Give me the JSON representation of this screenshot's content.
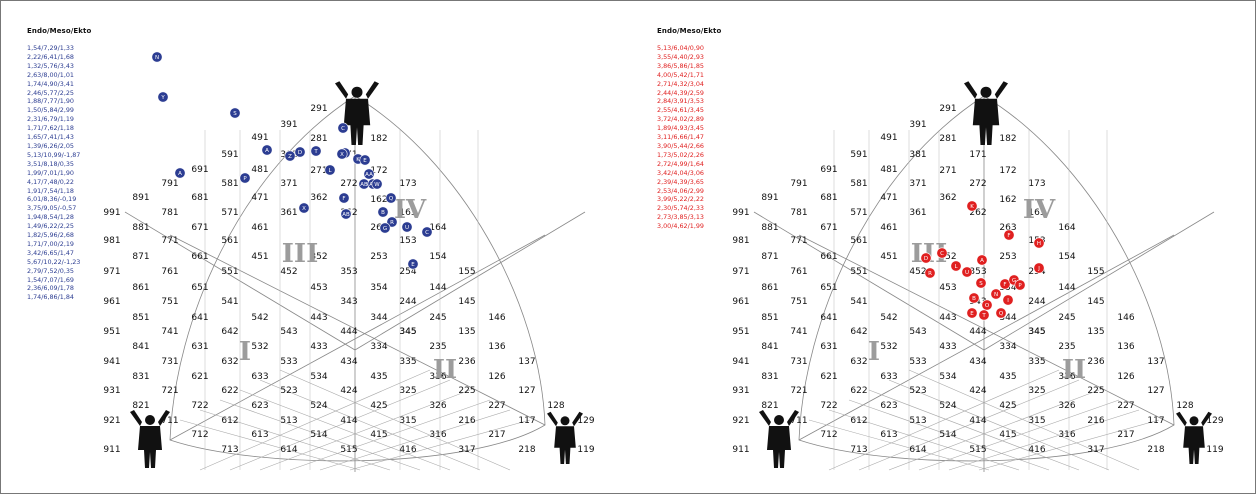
{
  "left_panel": {
    "heading": "Endo/Meso/Ekto",
    "color": "#2c3d92",
    "values": [
      "1,54/7,29/1,33",
      "2,22/6,41/1,68",
      "1,32/5,76/3,43",
      "2,63/8,00/1,01",
      "1,74/4,90/3,41",
      "2,46/5,77/2,25",
      "1,88/7,77/1,90",
      "1,50/5,84/2,99",
      "2,31/6,79/1,19",
      "1,71/7,62/1,18",
      "1,65/7,41/1,43",
      "1,39/6,26/2,05",
      "5,13/10,99/-1,87",
      "3,51/8,18/0,35",
      "1,99/7,01/1,90",
      "4,17/7,48/0,22",
      "1,91/7,54/1,18",
      "6,01/8,36/-0,19",
      "3,75/9,05/-0,57",
      "1,94/8,54/1,28",
      "1,49/6,22/2,25",
      "1,82/5,96/2,68",
      "1,71/7,00/2,19",
      "3,42/6,65/1,47",
      "5,67/10,22/-1,23",
      "2,79/7,52/0,35",
      "1,54/7,07/1,69",
      "2,36/6,09/1,78",
      "1,74/6,86/1,84"
    ],
    "markers": [
      {
        "label": "N",
        "mx": 0,
        "my": 0
      },
      {
        "label": "Y",
        "mx": 0,
        "my": 0
      },
      {
        "label": "S",
        "mx": 0,
        "my": 0
      },
      {
        "label": "A",
        "mx": 0,
        "my": 0
      },
      {
        "label": "P",
        "mx": 0,
        "my": 0
      },
      {
        "label": "A",
        "mx": 0,
        "my": 0
      },
      {
        "label": "Z",
        "mx": 0,
        "my": 0
      },
      {
        "label": "D",
        "mx": 0,
        "my": 0
      },
      {
        "label": "T",
        "mx": 0,
        "my": 0
      },
      {
        "label": "C",
        "mx": 0,
        "my": 0
      },
      {
        "label": "J",
        "mx": 0,
        "my": 0
      },
      {
        "label": "K",
        "mx": 0,
        "my": 0
      },
      {
        "label": "E",
        "mx": 0,
        "my": 0
      },
      {
        "label": "L",
        "mx": 0,
        "my": 0
      },
      {
        "label": "X",
        "mx": 0,
        "my": 0
      },
      {
        "label": "AA",
        "mx": 0,
        "my": 0
      },
      {
        "label": "AB",
        "mx": 0,
        "my": 0
      },
      {
        "label": "AC",
        "mx": 0,
        "my": 0
      },
      {
        "label": "W",
        "mx": 0,
        "my": 0
      },
      {
        "label": "Q",
        "mx": 0,
        "my": 0
      },
      {
        "label": "X",
        "mx": 0,
        "my": 0
      },
      {
        "label": "F",
        "mx": 0,
        "my": 0
      },
      {
        "label": "AB",
        "mx": 0,
        "my": 0
      },
      {
        "label": "R",
        "mx": 0,
        "my": 0
      },
      {
        "label": "B",
        "mx": 0,
        "my": 0
      },
      {
        "label": "U",
        "mx": 0,
        "my": 0
      },
      {
        "label": "G",
        "mx": 0,
        "my": 0
      },
      {
        "label": "C",
        "mx": 0,
        "my": 0
      },
      {
        "label": "E",
        "mx": 0,
        "my": 0
      }
    ]
  },
  "right_panel": {
    "heading": "Endo/Meso/Ekto",
    "color": "#e02020",
    "values": [
      "5,13/6,04/0,90",
      "3,55/4,40/2,93",
      "3,86/5,86/1,85",
      "4,00/5,42/1,71",
      "2,71/4,32/3,04",
      "2,44/4,39/2,59",
      "2,84/3,91/3,53",
      "2,55/4,61/3,45",
      "3,72/4,02/2,89",
      "1,89/4,93/3,45",
      "3,11/6,66/1,47",
      "3,90/5,44/2,66",
      "1,73/5,02/2,26",
      "2,72/4,99/1,64",
      "3,42/4,04/3,06",
      "2,39/4,39/3,65",
      "2,53/4,06/2,99",
      "3,99/5,22/2,22",
      "2,30/5,74/2,33",
      "2,73/3,85/3,13",
      "3,00/4,62/1,99"
    ],
    "markers": [
      {
        "label": "K"
      },
      {
        "label": "F"
      },
      {
        "label": "A"
      },
      {
        "label": "H"
      },
      {
        "label": "C"
      },
      {
        "label": "D"
      },
      {
        "label": "R"
      },
      {
        "label": "L"
      },
      {
        "label": "U"
      },
      {
        "label": "J"
      },
      {
        "label": "F"
      },
      {
        "label": "G"
      },
      {
        "label": "S"
      },
      {
        "label": "P"
      },
      {
        "label": "B"
      },
      {
        "label": "N"
      },
      {
        "label": "O"
      },
      {
        "label": "I"
      },
      {
        "label": "E"
      },
      {
        "label": "T"
      },
      {
        "label": "Q"
      }
    ]
  },
  "chart": {
    "zone_labels": [
      "I",
      "II",
      "III",
      "IV"
    ],
    "grid_numbers": [
      "291",
      "391",
      "281",
      "182",
      "491",
      "381",
      "171",
      "591",
      "481",
      "271",
      "172",
      "691",
      "581",
      "371",
      "272",
      "162",
      "173",
      "791",
      "681",
      "571",
      "471",
      "361",
      "262",
      "163",
      "891",
      "781",
      "671",
      "561",
      "461",
      "362",
      "263",
      "153",
      "164",
      "991",
      "881",
      "771",
      "661",
      "551",
      "451",
      "352",
      "253",
      "154",
      "981",
      "871",
      "761",
      "651",
      "541",
      "452",
      "353",
      "254",
      "155",
      "971",
      "861",
      "751",
      "641",
      "542",
      "453",
      "354",
      "244",
      "144",
      "961",
      "851",
      "741",
      "642",
      "543",
      "443",
      "343",
      "344",
      "245",
      "145",
      "951",
      "841",
      "731",
      "631",
      "532",
      "533",
      "444",
      "345",
      "235",
      "146",
      "941",
      "831",
      "721",
      "621",
      "632",
      "433",
      "434",
      "334",
      "136",
      "931",
      "821",
      "711",
      "722",
      "633",
      "534",
      "435",
      "336",
      "126",
      "137",
      "921",
      "712",
      "612",
      "523",
      "424",
      "325",
      "236",
      "127",
      "911",
      "713",
      "613",
      "513",
      "414",
      "415",
      "326",
      "227",
      "614",
      "514",
      "515",
      "316",
      "216",
      "128",
      "129",
      "117",
      "217",
      "218",
      "119",
      "622",
      "623",
      "524",
      "425",
      "315",
      "317",
      "416",
      "225",
      "335",
      "135",
      "345"
    ]
  }
}
